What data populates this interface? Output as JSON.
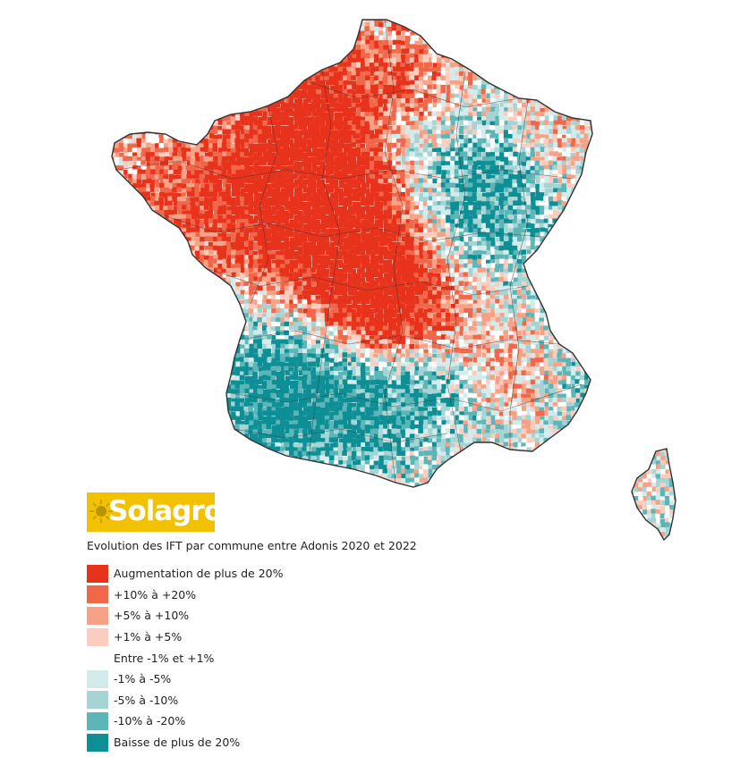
{
  "map": {
    "region": "France",
    "classes_count": 9
  },
  "logo": {
    "text": "Solagro",
    "color": "#f2c200"
  },
  "legend": {
    "title": "Evolution des IFT par commune entre Adonis 2020 et 2022",
    "items": [
      {
        "label": "Augmentation de plus de 20%",
        "color": "#e8331c"
      },
      {
        "label": "+10% à +20%",
        "color": "#f0674a"
      },
      {
        "label": "+5% à +10%",
        "color": "#f7a286"
      },
      {
        "label": "+1% à +5%",
        "color": "#fbcdbf"
      },
      {
        "label": "Entre -1% et +1%",
        "color": "#ffffff"
      },
      {
        "label": "-1% à -5%",
        "color": "#d3eceb"
      },
      {
        "label": "-5% à -10%",
        "color": "#a5d4d4"
      },
      {
        "label": "-10% à -20%",
        "color": "#5cb6b8"
      },
      {
        "label": "Baisse de plus de 20%",
        "color": "#0e8f95"
      }
    ]
  }
}
